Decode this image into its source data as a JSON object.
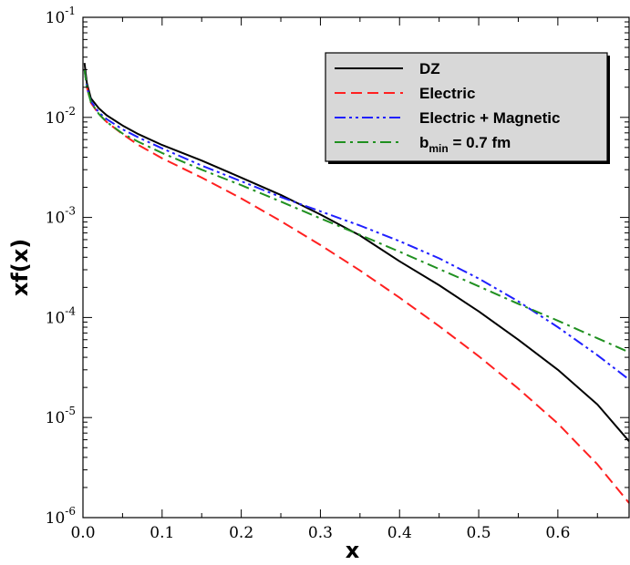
{
  "chart_data": {
    "type": "line",
    "xlabel": "x",
    "ylabel": "xf(x)",
    "xlim": [
      0,
      0.69
    ],
    "ylim": [
      1e-06,
      0.1
    ],
    "yscale": "log",
    "x_ticks": [
      "0.0",
      "0.1",
      "0.2",
      "0.3",
      "0.4",
      "0.5",
      "0.6"
    ],
    "y_ticks": [
      {
        "base": "10",
        "exp": "-6"
      },
      {
        "base": "10",
        "exp": "-5"
      },
      {
        "base": "10",
        "exp": "-4"
      },
      {
        "base": "10",
        "exp": "-3"
      },
      {
        "base": "10",
        "exp": "-2"
      },
      {
        "base": "10",
        "exp": "-1"
      }
    ],
    "legend": {
      "placement": "top-right",
      "entries": [
        {
          "label": "DZ"
        },
        {
          "label": "Electric"
        },
        {
          "label": "Electric + Magnetic"
        },
        {
          "label": "b",
          "sub": "min",
          "suffix": " = 0.7 fm"
        }
      ]
    },
    "series": [
      {
        "name": "DZ",
        "color": "#000000",
        "dash": "solid",
        "x": [
          0.002,
          0.005,
          0.01,
          0.02,
          0.03,
          0.05,
          0.07,
          0.1,
          0.15,
          0.2,
          0.25,
          0.3,
          0.35,
          0.4,
          0.45,
          0.5,
          0.55,
          0.6,
          0.65,
          0.69
        ],
        "y": [
          0.035,
          0.022,
          0.0155,
          0.0123,
          0.0105,
          0.0083,
          0.0068,
          0.0053,
          0.0037,
          0.0025,
          0.00168,
          0.00107,
          0.00066,
          0.000365,
          0.00021,
          0.000115,
          6e-05,
          3e-05,
          1.35e-05,
          5.8e-06
        ]
      },
      {
        "name": "Electric",
        "color": "#ff2020",
        "dash": "dashed",
        "x": [
          0.002,
          0.005,
          0.01,
          0.02,
          0.03,
          0.05,
          0.07,
          0.1,
          0.15,
          0.2,
          0.25,
          0.3,
          0.35,
          0.4,
          0.45,
          0.5,
          0.55,
          0.6,
          0.65,
          0.69
        ],
        "y": [
          0.03,
          0.02,
          0.014,
          0.0108,
          0.009,
          0.0068,
          0.0053,
          0.0039,
          0.0025,
          0.00155,
          0.00092,
          0.00053,
          0.000295,
          0.000158,
          8.2e-05,
          4.1e-05,
          1.95e-05,
          8.7e-06,
          3.4e-06,
          1.4e-06
        ]
      },
      {
        "name": "Electric + Magnetic",
        "color": "#2020ff",
        "dash": "dash-dot-dot",
        "x": [
          0.002,
          0.005,
          0.01,
          0.02,
          0.03,
          0.05,
          0.07,
          0.1,
          0.15,
          0.2,
          0.25,
          0.3,
          0.35,
          0.4,
          0.45,
          0.5,
          0.55,
          0.6,
          0.65,
          0.69
        ],
        "y": [
          0.03,
          0.02,
          0.0145,
          0.0112,
          0.0096,
          0.0076,
          0.0063,
          0.0049,
          0.0033,
          0.0023,
          0.0016,
          0.00115,
          0.00083,
          0.00058,
          0.00039,
          0.000245,
          0.000145,
          8e-05,
          4.2e-05,
          2.4e-05
        ]
      },
      {
        "name": "b_min = 0.7 fm",
        "color": "#209020",
        "dash": "dash-dot",
        "x": [
          0.002,
          0.005,
          0.01,
          0.02,
          0.03,
          0.05,
          0.07,
          0.1,
          0.15,
          0.2,
          0.25,
          0.3,
          0.35,
          0.4,
          0.45,
          0.5,
          0.55,
          0.6,
          0.65,
          0.69
        ],
        "y": [
          0.03,
          0.02,
          0.0142,
          0.0108,
          0.009,
          0.0069,
          0.0057,
          0.0044,
          0.003,
          0.0021,
          0.00144,
          0.00098,
          0.00067,
          0.000455,
          0.000305,
          0.000205,
          0.000137,
          9.3e-05,
          6.2e-05,
          4.5e-05
        ]
      }
    ]
  }
}
